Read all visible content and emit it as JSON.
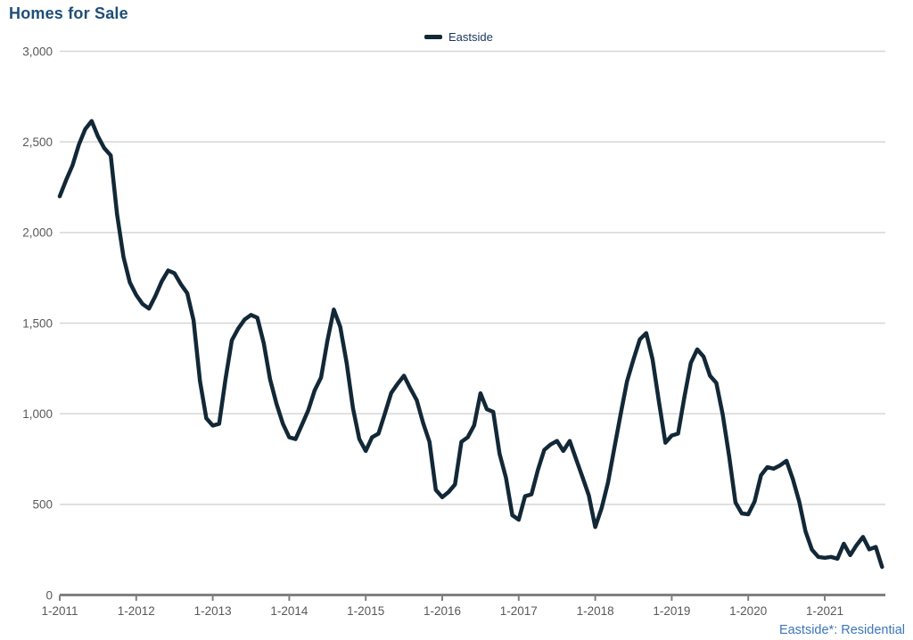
{
  "header": {
    "title": "Homes for Sale"
  },
  "legend": {
    "label": "Eastside"
  },
  "footer": {
    "note": "Eastside*: Residential"
  },
  "chart_data": {
    "type": "line",
    "title": "Homes for Sale",
    "x_tick_labels": [
      "1-2011",
      "1-2012",
      "1-2013",
      "1-2014",
      "1-2015",
      "1-2016",
      "1-2017",
      "1-2018",
      "1-2019",
      "1-2020",
      "1-2021"
    ],
    "y_ticks": [
      0,
      500,
      1000,
      1500,
      2000,
      2500,
      3000
    ],
    "y_tick_labels": [
      "0",
      "500",
      "1,000",
      "1,500",
      "2,000",
      "2,500",
      "3,000"
    ],
    "ylim": [
      0,
      3000
    ],
    "grid": "horizontal",
    "legend_position": "top-center",
    "frequency": "monthly",
    "x_start": "1-2011",
    "x_end": "10-2021",
    "series": [
      {
        "name": "Eastside",
        "color": "#122837",
        "values": [
          2200,
          2290,
          2370,
          2485,
          2570,
          2615,
          2530,
          2465,
          2425,
          2100,
          1865,
          1725,
          1655,
          1605,
          1580,
          1650,
          1730,
          1790,
          1775,
          1715,
          1665,
          1515,
          1180,
          975,
          935,
          945,
          1190,
          1405,
          1470,
          1520,
          1545,
          1530,
          1390,
          1190,
          1055,
          945,
          870,
          860,
          940,
          1020,
          1130,
          1200,
          1405,
          1575,
          1480,
          1280,
          1030,
          860,
          795,
          870,
          890,
          1000,
          1115,
          1165,
          1210,
          1140,
          1075,
          950,
          845,
          580,
          540,
          568,
          610,
          845,
          870,
          936,
          1113,
          1025,
          1010,
          779,
          646,
          440,
          415,
          545,
          555,
          690,
          800,
          830,
          850,
          795,
          850,
          750,
          650,
          550,
          375,
          480,
          620,
          810,
          1000,
          1180,
          1300,
          1410,
          1445,
          1300,
          1065,
          840,
          880,
          890,
          1095,
          1280,
          1355,
          1315,
          1210,
          1170,
          995,
          765,
          510,
          450,
          445,
          515,
          660,
          705,
          697,
          715,
          740,
          640,
          515,
          350,
          250,
          210,
          205,
          210,
          200,
          283,
          220,
          275,
          320,
          252,
          265,
          155
        ]
      }
    ],
    "colors": {
      "title": "#1F4E79",
      "legend_text": "#17375E",
      "footer_text": "#3D76B8",
      "axis_text": "#595959",
      "gridline": "#D6D6D6",
      "axis_line": "#808080",
      "line": "#122837"
    }
  }
}
